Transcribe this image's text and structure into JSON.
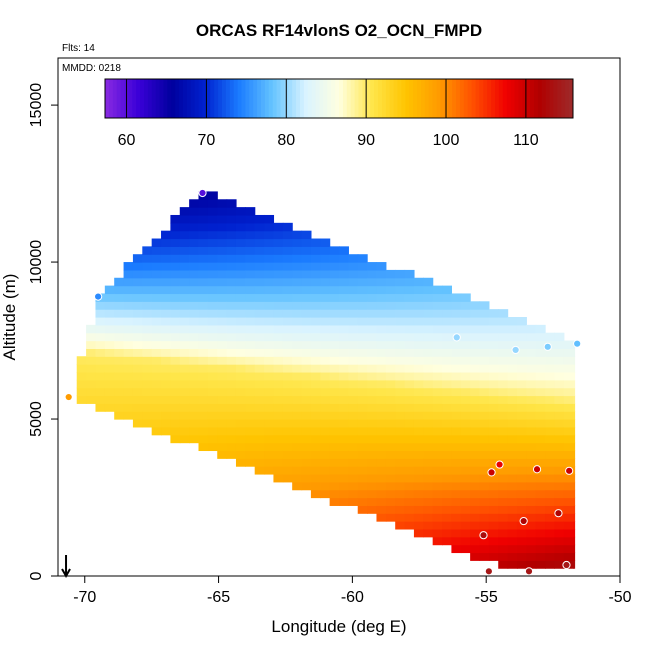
{
  "chart_data": {
    "type": "heatmap",
    "title": "ORCAS RF14vlonS O2_OCN_FMPD",
    "flights_label": "Flts: 14",
    "date_label": "MMDD: 0218",
    "xlabel": "Longitude (deg E)",
    "ylabel": "Altitude (m)",
    "xlim": [
      -71,
      -50
    ],
    "ylim": [
      0,
      16500
    ],
    "x_ticks": [
      -70,
      -65,
      -60,
      -55,
      -50
    ],
    "x_tick_labels": [
      "-70",
      "-65",
      "-60",
      "-55",
      "-50"
    ],
    "y_ticks": [
      0,
      5000,
      10000,
      15000
    ],
    "y_tick_labels": [
      "0",
      "5000",
      "10000",
      "15000"
    ],
    "colorbar": {
      "range": [
        57.3,
        115.9
      ],
      "ticks": [
        60,
        70,
        80,
        90,
        100,
        110
      ],
      "tick_labels": [
        "60",
        "70",
        "80",
        "90",
        "100",
        "110"
      ],
      "colors": [
        "#8a2be2",
        "#3a00d8",
        "#00009e",
        "#0022d0",
        "#1a7bff",
        "#64c3ff",
        "#d9f3ff",
        "#ffffe0",
        "#ffe64a",
        "#ffc400",
        "#ff9a00",
        "#ff5000",
        "#f00000",
        "#b00000",
        "#9e2a2a"
      ]
    },
    "field_model": {
      "top_profile": [
        [
          -70.3,
          6500
        ],
        [
          -69.5,
          8900
        ],
        [
          -65.6,
          12300
        ],
        [
          -51.7,
          7500
        ]
      ],
      "bottom_profile": [
        [
          -70.3,
          5600
        ],
        [
          -54.2,
          200
        ],
        [
          -51.7,
          200
        ]
      ],
      "value_at_surface_west": 101,
      "value_at_surface_east": 116,
      "value_at_top_west": 62,
      "value_at_top_east": 72,
      "value_iso90_west_altitude": 7200,
      "value_iso90_east_altitude": 5400
    },
    "flight_points": [
      {
        "lon": -65.6,
        "alt": 12200,
        "value": 60
      },
      {
        "lon": -69.5,
        "alt": 8900,
        "value": 75
      },
      {
        "lon": -70.6,
        "alt": 5700,
        "value": 99
      },
      {
        "lon": -56.1,
        "alt": 7600,
        "value": 80
      },
      {
        "lon": -53.9,
        "alt": 7200,
        "value": 80
      },
      {
        "lon": -52.7,
        "alt": 7300,
        "value": 79
      },
      {
        "lon": -51.6,
        "alt": 7400,
        "value": 78
      },
      {
        "lon": -54.8,
        "alt": 3300,
        "value": 110
      },
      {
        "lon": -54.5,
        "alt": 3550,
        "value": 108
      },
      {
        "lon": -53.1,
        "alt": 3400,
        "value": 110
      },
      {
        "lon": -51.9,
        "alt": 3350,
        "value": 110
      },
      {
        "lon": -53.6,
        "alt": 1750,
        "value": 112
      },
      {
        "lon": -52.3,
        "alt": 2000,
        "value": 112
      },
      {
        "lon": -55.1,
        "alt": 1300,
        "value": 113
      },
      {
        "lon": -54.9,
        "alt": 150,
        "value": 114
      },
      {
        "lon": -53.4,
        "alt": 150,
        "value": 114
      },
      {
        "lon": -52.0,
        "alt": 350,
        "value": 114
      }
    ],
    "marker": {
      "lon": -70.7,
      "alt": 0,
      "label": "arrow"
    }
  }
}
